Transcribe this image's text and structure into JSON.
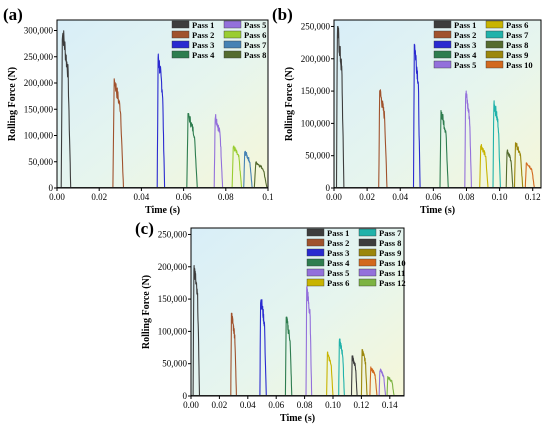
{
  "chart_data": [
    {
      "panel_label": "(a)",
      "type": "line",
      "xlabel": "Time (s)",
      "ylabel": "Rolling Force (N)",
      "xlim": [
        0,
        0.1
      ],
      "ylim": [
        0,
        320000
      ],
      "x_ticks": [
        "0.00",
        "0.02",
        "0.04",
        "0.06",
        "0.08",
        "0.1"
      ],
      "x_tick_values": [
        0,
        0.02,
        0.04,
        0.06,
        0.08,
        0.1
      ],
      "y_ticks": [
        "0",
        "50,000",
        "100,000",
        "150,000",
        "200,000",
        "250,000",
        "300,000"
      ],
      "y_tick_values": [
        0,
        50000,
        100000,
        150000,
        200000,
        250000,
        300000
      ],
      "legend_position": "top-right",
      "legend_cols": 2,
      "series": [
        {
          "name": "Pass 1",
          "color": "#3d3d3d",
          "start": 0.002,
          "end": 0.0065,
          "peak": 305000
        },
        {
          "name": "Pass 2",
          "color": "#a0522d",
          "start": 0.0265,
          "end": 0.0315,
          "peak": 208000
        },
        {
          "name": "Pass 3",
          "color": "#2a2ad0",
          "start": 0.0475,
          "end": 0.051,
          "peak": 255000
        },
        {
          "name": "Pass 4",
          "color": "#2e7d4f",
          "start": 0.0615,
          "end": 0.0665,
          "peak": 142000
        },
        {
          "name": "Pass 5",
          "color": "#9370db",
          "start": 0.0745,
          "end": 0.0785,
          "peak": 140000
        },
        {
          "name": "Pass 6",
          "color": "#9acd32",
          "start": 0.083,
          "end": 0.0875,
          "peak": 80000
        },
        {
          "name": "Pass 7",
          "color": "#4682b4",
          "start": 0.0885,
          "end": 0.0925,
          "peak": 70000
        },
        {
          "name": "Pass 8",
          "color": "#556b2f",
          "start": 0.0935,
          "end": 0.0995,
          "peak": 50000
        }
      ]
    },
    {
      "panel_label": "(b)",
      "type": "line",
      "xlabel": "Time (s)",
      "ylabel": "Rolling Force (N)",
      "xlim": [
        0,
        0.125
      ],
      "ylim": [
        0,
        260000
      ],
      "x_ticks": [
        "0.00",
        "0.02",
        "0.04",
        "0.06",
        "0.08",
        "0.10",
        "0.12"
      ],
      "x_tick_values": [
        0,
        0.02,
        0.04,
        0.06,
        0.08,
        0.1,
        0.12
      ],
      "y_ticks": [
        "0",
        "50,000",
        "100,000",
        "150,000",
        "200,000",
        "250,000"
      ],
      "y_tick_values": [
        0,
        50000,
        100000,
        150000,
        200000,
        250000
      ],
      "legend_position": "top-right",
      "legend_cols": 2,
      "series": [
        {
          "name": "Pass 1",
          "color": "#3d3d3d",
          "start": 0.0015,
          "end": 0.006,
          "peak": 250000
        },
        {
          "name": "Pass 2",
          "color": "#a0522d",
          "start": 0.027,
          "end": 0.032,
          "peak": 152000
        },
        {
          "name": "Pass 3",
          "color": "#2a2ad0",
          "start": 0.048,
          "end": 0.052,
          "peak": 228000
        },
        {
          "name": "Pass 4",
          "color": "#2e7d4f",
          "start": 0.064,
          "end": 0.069,
          "peak": 120000
        },
        {
          "name": "Pass 5",
          "color": "#9370db",
          "start": 0.079,
          "end": 0.083,
          "peak": 150000
        },
        {
          "name": "Pass 6",
          "color": "#c8b400",
          "start": 0.088,
          "end": 0.093,
          "peak": 68000
        },
        {
          "name": "Pass 7",
          "color": "#20b2aa",
          "start": 0.096,
          "end": 0.1005,
          "peak": 135000
        },
        {
          "name": "Pass 8",
          "color": "#556b2f",
          "start": 0.104,
          "end": 0.108,
          "peak": 60000
        },
        {
          "name": "Pass 9",
          "color": "#9b870c",
          "start": 0.109,
          "end": 0.114,
          "peak": 70000
        },
        {
          "name": "Pass 10",
          "color": "#d2691e",
          "start": 0.1155,
          "end": 0.121,
          "peak": 40000
        }
      ]
    },
    {
      "panel_label": "(c)",
      "type": "line",
      "xlabel": "Time (s)",
      "ylabel": "Rolling Force (N)",
      "xlim": [
        0,
        0.15
      ],
      "ylim": [
        0,
        260000
      ],
      "x_ticks": [
        "0.00",
        "0.02",
        "0.04",
        "0.06",
        "0.08",
        "0.10",
        "0.12",
        "0.14"
      ],
      "x_tick_values": [
        0,
        0.02,
        0.04,
        0.06,
        0.08,
        0.1,
        0.12,
        0.14
      ],
      "y_ticks": [
        "0",
        "50,000",
        "100,000",
        "150,000",
        "200,000",
        "250,000"
      ],
      "y_tick_values": [
        0,
        50000,
        100000,
        150000,
        200000,
        250000
      ],
      "legend_position": "top-right",
      "legend_cols": 2,
      "series": [
        {
          "name": "Pass 1",
          "color": "#3d3d3d",
          "start": 0.0015,
          "end": 0.006,
          "peak": 205000
        },
        {
          "name": "Pass 2",
          "color": "#a0522d",
          "start": 0.028,
          "end": 0.032,
          "peak": 128000
        },
        {
          "name": "Pass 3",
          "color": "#2a2ad0",
          "start": 0.0485,
          "end": 0.053,
          "peak": 155000
        },
        {
          "name": "Pass 4",
          "color": "#2e7d4f",
          "start": 0.0665,
          "end": 0.071,
          "peak": 122000
        },
        {
          "name": "Pass 5",
          "color": "#9370db",
          "start": 0.081,
          "end": 0.085,
          "peak": 170000
        },
        {
          "name": "Pass 6",
          "color": "#c8b400",
          "start": 0.0955,
          "end": 0.1,
          "peak": 68000
        },
        {
          "name": "Pass 7",
          "color": "#20b2aa",
          "start": 0.104,
          "end": 0.108,
          "peak": 88000
        },
        {
          "name": "Pass 8",
          "color": "#3d3d3d",
          "start": 0.113,
          "end": 0.117,
          "peak": 62000
        },
        {
          "name": "Pass 9",
          "color": "#9b870c",
          "start": 0.12,
          "end": 0.124,
          "peak": 72000
        },
        {
          "name": "Pass 10",
          "color": "#d2691e",
          "start": 0.126,
          "end": 0.131,
          "peak": 45000
        },
        {
          "name": "Pass 11",
          "color": "#9370db",
          "start": 0.1325,
          "end": 0.137,
          "peak": 42000
        },
        {
          "name": "Pass 12",
          "color": "#7cb342",
          "start": 0.138,
          "end": 0.143,
          "peak": 30000
        }
      ]
    }
  ]
}
